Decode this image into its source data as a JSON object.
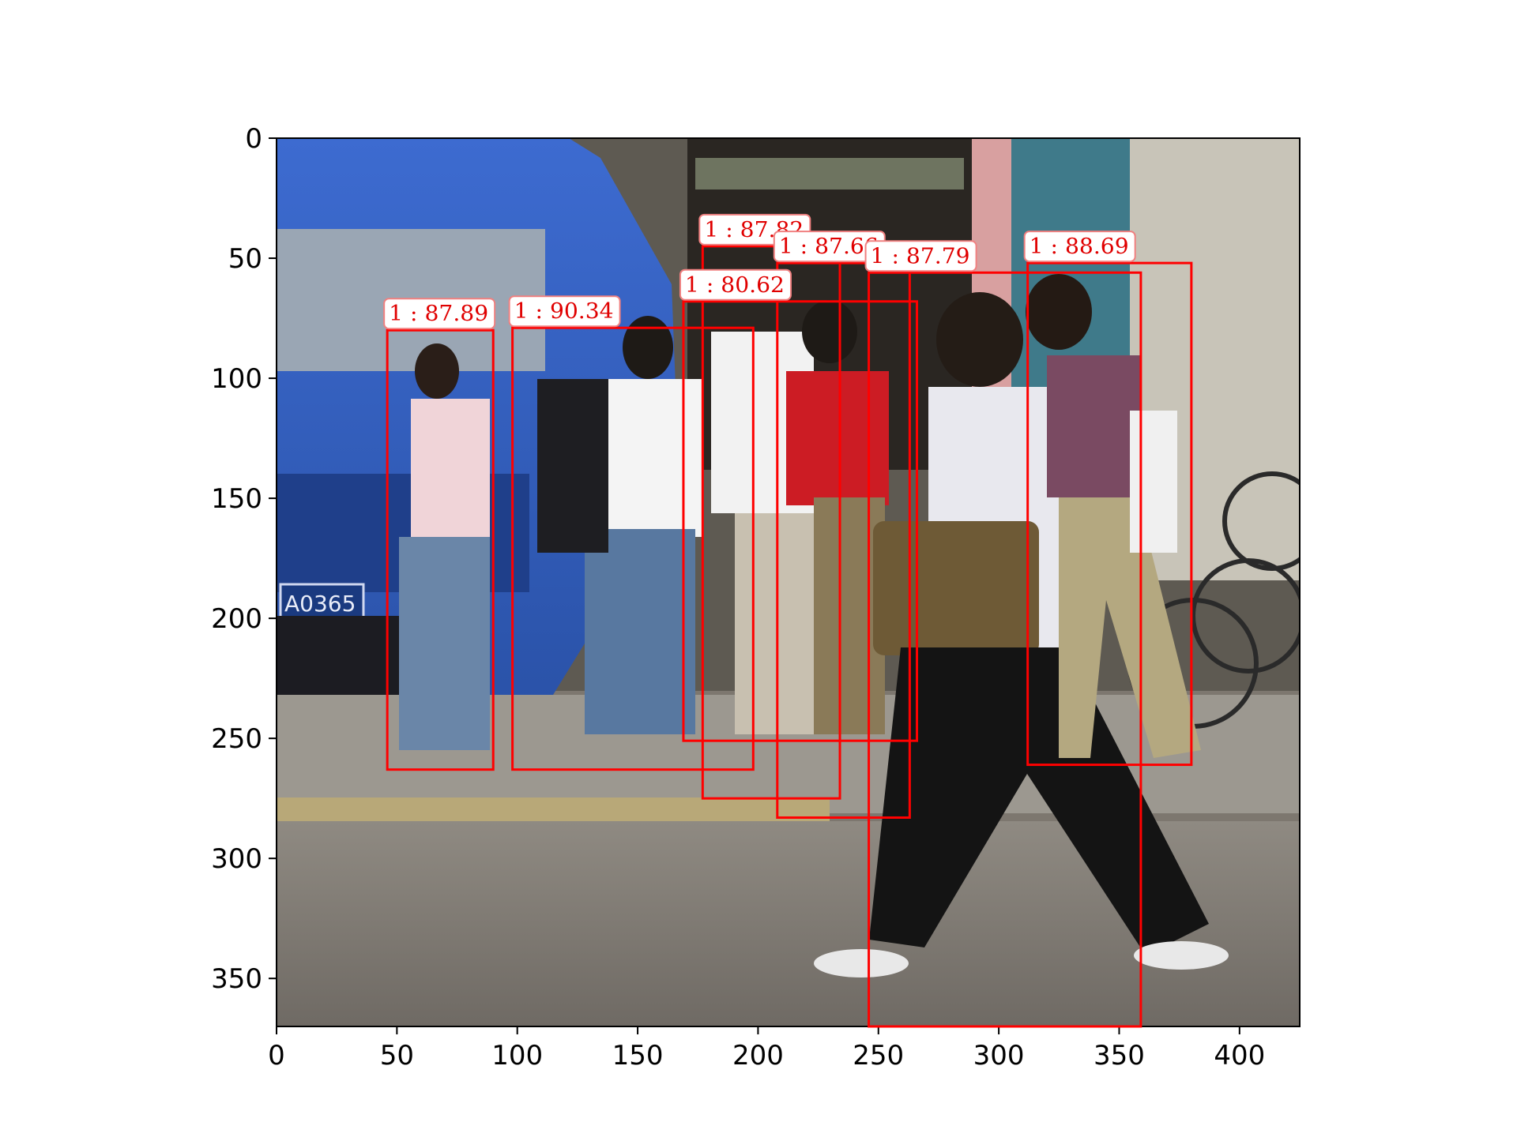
{
  "image": {
    "width": 425,
    "height": 370,
    "description_icon": "photo-street-pedestrians"
  },
  "axes": {
    "x_ticks": [
      0,
      50,
      100,
      150,
      200,
      250,
      300,
      350,
      400
    ],
    "y_ticks": [
      0,
      50,
      100,
      150,
      200,
      250,
      300,
      350
    ],
    "xlim": [
      0,
      425
    ],
    "ylim": [
      370,
      0
    ],
    "grid": false
  },
  "detections": [
    {
      "label": "1 : 87.89",
      "x0": 46,
      "y0": 80,
      "x1": 90,
      "y1": 263
    },
    {
      "label": "1 : 90.34",
      "x0": 98,
      "y0": 79,
      "x1": 198,
      "y1": 263
    },
    {
      "label": "1 : 80.62",
      "x0": 169,
      "y0": 68,
      "x1": 266,
      "y1": 251
    },
    {
      "label": "1 : 87.82",
      "x0": 177,
      "y0": 45,
      "x1": 234,
      "y1": 275
    },
    {
      "label": "1 : 87.66",
      "x0": 208,
      "y0": 52,
      "x1": 263,
      "y1": 283
    },
    {
      "label": "1 : 87.79",
      "x0": 246,
      "y0": 56,
      "x1": 359,
      "y1": 370
    },
    {
      "label": "1 : 88.69",
      "x0": 312,
      "y0": 52,
      "x1": 380,
      "y1": 261
    }
  ],
  "colors": {
    "box": "#ff0000",
    "label_text": "#e00000",
    "label_bg": "#ffffff",
    "label_border": "#f08080"
  }
}
